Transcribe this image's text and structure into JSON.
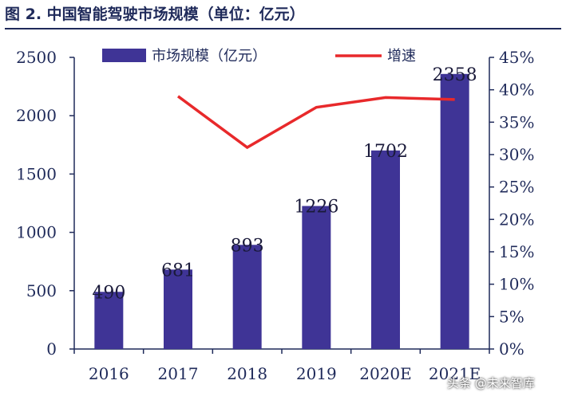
{
  "title": "图 2. 中国智能驾驶市场规模（单位：亿元）",
  "watermark": "头条 @未来智库",
  "colors": {
    "bar": "#3f3496",
    "line": "#e8292b",
    "axis": "#1f2a5a",
    "text": "#1f2a5a"
  },
  "chart_data": {
    "type": "bar",
    "categories": [
      "2016",
      "2017",
      "2018",
      "2019",
      "2020E",
      "2021E"
    ],
    "series": [
      {
        "name": "市场规模（亿元）",
        "type": "bar",
        "axis": "left",
        "values": [
          490,
          681,
          893,
          1226,
          1702,
          2358
        ]
      },
      {
        "name": "增速",
        "type": "line",
        "axis": "right",
        "values": [
          null,
          0.39,
          0.311,
          0.373,
          0.388,
          0.385
        ]
      }
    ],
    "data_labels": [
      "490",
      "681",
      "893",
      "1226",
      "1702",
      "2358"
    ],
    "y_left": {
      "ylim": [
        0,
        2500
      ],
      "ticks": [
        0,
        500,
        1000,
        1500,
        2000,
        2500
      ],
      "tick_labels": [
        "0",
        "500",
        "1000",
        "1500",
        "2000",
        "2500"
      ]
    },
    "y_right": {
      "ylim": [
        0,
        0.45
      ],
      "ticks": [
        0,
        0.05,
        0.1,
        0.15,
        0.2,
        0.25,
        0.3,
        0.35,
        0.4,
        0.45
      ],
      "tick_labels": [
        "0%",
        "5%",
        "10%",
        "15%",
        "20%",
        "25%",
        "30%",
        "35%",
        "40%",
        "45%"
      ]
    },
    "legend_position": "top",
    "grid": false
  }
}
